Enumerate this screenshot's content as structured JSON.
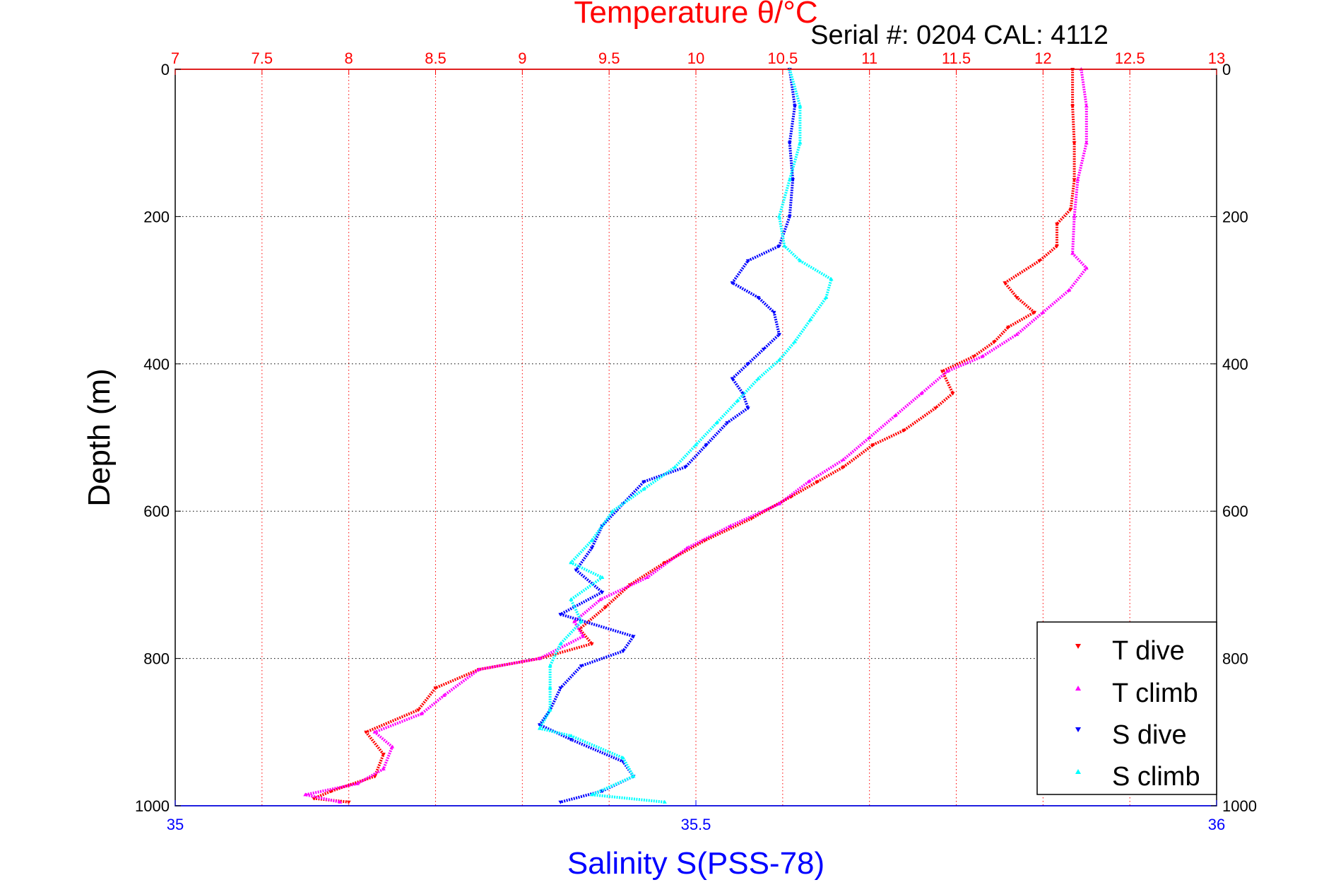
{
  "chart_data": {
    "type": "scatter",
    "title": "Temperature θ/°C",
    "subtitle": "Serial #: 0204  CAL: 4112",
    "xlabel": "Salinity S(PSS-78)",
    "ylabel": "Depth (m)",
    "x_top_axis": {
      "label": "Temperature θ/°C",
      "lim": [
        7,
        13
      ],
      "ticks": [
        "7",
        "7.5",
        "8",
        "8.5",
        "9",
        "9.5",
        "10",
        "10.5",
        "11",
        "11.5",
        "12",
        "12.5",
        "13"
      ],
      "color": "#ff0000"
    },
    "x_bottom_axis": {
      "label": "Salinity S(PSS-78)",
      "lim": [
        35,
        36
      ],
      "ticks": [
        "35",
        "35.5",
        "36"
      ],
      "color": "#0000ff"
    },
    "y_axis": {
      "lim": [
        0,
        1000
      ],
      "reversed": true,
      "ticks": [
        "0",
        "200",
        "400",
        "600",
        "800",
        "1000"
      ]
    },
    "grid": true,
    "legend_position": "bottom-right",
    "series": [
      {
        "name": "T dive",
        "axis": "temperature",
        "color": "#ff0000",
        "marker": "triangle-down",
        "points": [
          [
            12.17,
            0
          ],
          [
            12.17,
            50
          ],
          [
            12.18,
            100
          ],
          [
            12.18,
            150
          ],
          [
            12.16,
            190
          ],
          [
            12.08,
            210
          ],
          [
            12.08,
            240
          ],
          [
            11.98,
            260
          ],
          [
            11.78,
            290
          ],
          [
            11.85,
            310
          ],
          [
            11.95,
            330
          ],
          [
            11.8,
            350
          ],
          [
            11.72,
            370
          ],
          [
            11.6,
            390
          ],
          [
            11.42,
            410
          ],
          [
            11.48,
            440
          ],
          [
            11.38,
            460
          ],
          [
            11.2,
            490
          ],
          [
            11.02,
            510
          ],
          [
            10.85,
            540
          ],
          [
            10.7,
            560
          ],
          [
            10.55,
            580
          ],
          [
            10.32,
            610
          ],
          [
            10.05,
            640
          ],
          [
            9.82,
            670
          ],
          [
            9.62,
            700
          ],
          [
            9.48,
            730
          ],
          [
            9.33,
            760
          ],
          [
            9.4,
            780
          ],
          [
            9.1,
            800
          ],
          [
            8.75,
            815
          ],
          [
            8.5,
            840
          ],
          [
            8.4,
            870
          ],
          [
            8.1,
            900
          ],
          [
            8.2,
            930
          ],
          [
            8.15,
            960
          ],
          [
            7.9,
            980
          ],
          [
            7.8,
            990
          ],
          [
            8.0,
            995
          ]
        ]
      },
      {
        "name": "T climb",
        "axis": "temperature",
        "color": "#ff00ff",
        "marker": "triangle-up",
        "points": [
          [
            12.22,
            0
          ],
          [
            12.25,
            50
          ],
          [
            12.25,
            100
          ],
          [
            12.2,
            150
          ],
          [
            12.18,
            200
          ],
          [
            12.17,
            250
          ],
          [
            12.25,
            270
          ],
          [
            12.15,
            300
          ],
          [
            12.0,
            330
          ],
          [
            11.85,
            360
          ],
          [
            11.65,
            390
          ],
          [
            11.45,
            410
          ],
          [
            11.3,
            440
          ],
          [
            11.15,
            470
          ],
          [
            11.0,
            500
          ],
          [
            10.85,
            530
          ],
          [
            10.65,
            560
          ],
          [
            10.48,
            590
          ],
          [
            10.2,
            620
          ],
          [
            9.95,
            650
          ],
          [
            9.72,
            690
          ],
          [
            9.45,
            720
          ],
          [
            9.3,
            750
          ],
          [
            9.35,
            770
          ],
          [
            9.1,
            800
          ],
          [
            8.75,
            815
          ],
          [
            8.55,
            850
          ],
          [
            8.42,
            875
          ],
          [
            8.15,
            900
          ],
          [
            8.25,
            920
          ],
          [
            8.2,
            950
          ],
          [
            8.05,
            970
          ],
          [
            7.75,
            985
          ],
          [
            7.95,
            995
          ]
        ]
      },
      {
        "name": "S dive",
        "axis": "salinity",
        "color": "#0000ff",
        "marker": "triangle-down",
        "points": [
          [
            35.59,
            0
          ],
          [
            35.595,
            50
          ],
          [
            35.59,
            100
          ],
          [
            35.593,
            150
          ],
          [
            35.59,
            200
          ],
          [
            35.58,
            240
          ],
          [
            35.55,
            260
          ],
          [
            35.535,
            290
          ],
          [
            35.56,
            310
          ],
          [
            35.575,
            330
          ],
          [
            35.58,
            360
          ],
          [
            35.565,
            380
          ],
          [
            35.55,
            400
          ],
          [
            35.535,
            420
          ],
          [
            35.545,
            440
          ],
          [
            35.55,
            460
          ],
          [
            35.53,
            480
          ],
          [
            35.51,
            510
          ],
          [
            35.49,
            540
          ],
          [
            35.45,
            560
          ],
          [
            35.43,
            590
          ],
          [
            35.41,
            620
          ],
          [
            35.4,
            650
          ],
          [
            35.385,
            680
          ],
          [
            35.41,
            710
          ],
          [
            35.37,
            740
          ],
          [
            35.44,
            770
          ],
          [
            35.43,
            790
          ],
          [
            35.39,
            810
          ],
          [
            35.37,
            840
          ],
          [
            35.36,
            870
          ],
          [
            35.35,
            890
          ],
          [
            35.38,
            910
          ],
          [
            35.43,
            940
          ],
          [
            35.44,
            960
          ],
          [
            35.41,
            980
          ],
          [
            35.37,
            995
          ]
        ]
      },
      {
        "name": "S climb",
        "axis": "salinity",
        "color": "#00ffff",
        "marker": "triangle-up",
        "points": [
          [
            35.59,
            0
          ],
          [
            35.6,
            50
          ],
          [
            35.6,
            100
          ],
          [
            35.59,
            150
          ],
          [
            35.58,
            200
          ],
          [
            35.585,
            240
          ],
          [
            35.6,
            260
          ],
          [
            35.63,
            285
          ],
          [
            35.625,
            310
          ],
          [
            35.61,
            340
          ],
          [
            35.595,
            370
          ],
          [
            35.58,
            395
          ],
          [
            35.56,
            420
          ],
          [
            35.54,
            450
          ],
          [
            35.52,
            480
          ],
          [
            35.5,
            510
          ],
          [
            35.48,
            540
          ],
          [
            35.45,
            570
          ],
          [
            35.42,
            600
          ],
          [
            35.4,
            640
          ],
          [
            35.38,
            670
          ],
          [
            35.41,
            690
          ],
          [
            35.38,
            720
          ],
          [
            35.39,
            750
          ],
          [
            35.37,
            780
          ],
          [
            35.36,
            810
          ],
          [
            35.36,
            840
          ],
          [
            35.36,
            870
          ],
          [
            35.35,
            895
          ],
          [
            35.38,
            905
          ],
          [
            35.43,
            935
          ],
          [
            35.44,
            960
          ],
          [
            35.4,
            985
          ],
          [
            35.47,
            995
          ]
        ]
      }
    ]
  },
  "legend": {
    "items": [
      {
        "label": "T dive",
        "color": "#ff0000",
        "marker": "triangle-down"
      },
      {
        "label": "T climb",
        "color": "#ff00ff",
        "marker": "triangle-up"
      },
      {
        "label": "S dive",
        "color": "#0000ff",
        "marker": "triangle-down"
      },
      {
        "label": "S climb",
        "color": "#00ffff",
        "marker": "triangle-up"
      }
    ]
  }
}
